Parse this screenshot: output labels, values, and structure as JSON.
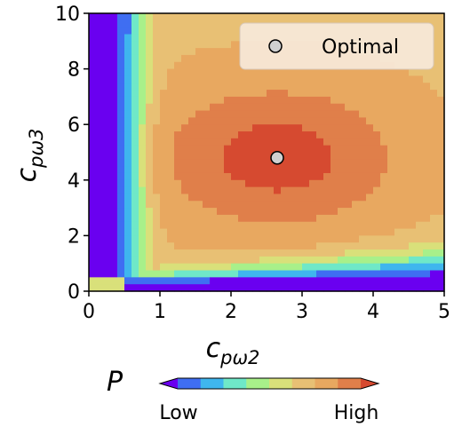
{
  "chart_data": {
    "type": "heatmap",
    "xlabel": {
      "main": "c",
      "sub": "pω2"
    },
    "ylabel": {
      "main": "c",
      "sub": "pω3"
    },
    "xlim": [
      0,
      5
    ],
    "ylim": [
      0,
      10
    ],
    "x_ticks": [
      "0",
      "1",
      "2",
      "3",
      "4",
      "5"
    ],
    "y_ticks": [
      "0",
      "2",
      "4",
      "6",
      "8",
      "10"
    ],
    "colormap": [
      "#6a00f0",
      "#3f6ef2",
      "#3fb6ee",
      "#6fe8c8",
      "#a8f08a",
      "#d9e07a",
      "#e8c074",
      "#e8a860",
      "#e07f4a",
      "#d64a30"
    ],
    "optimal_point": {
      "x": 2.65,
      "y": 4.8
    },
    "legend": {
      "label": "Optimal",
      "placement": "top-right"
    },
    "colorbar": {
      "label": "P",
      "low": "Low",
      "high": "High"
    }
  }
}
